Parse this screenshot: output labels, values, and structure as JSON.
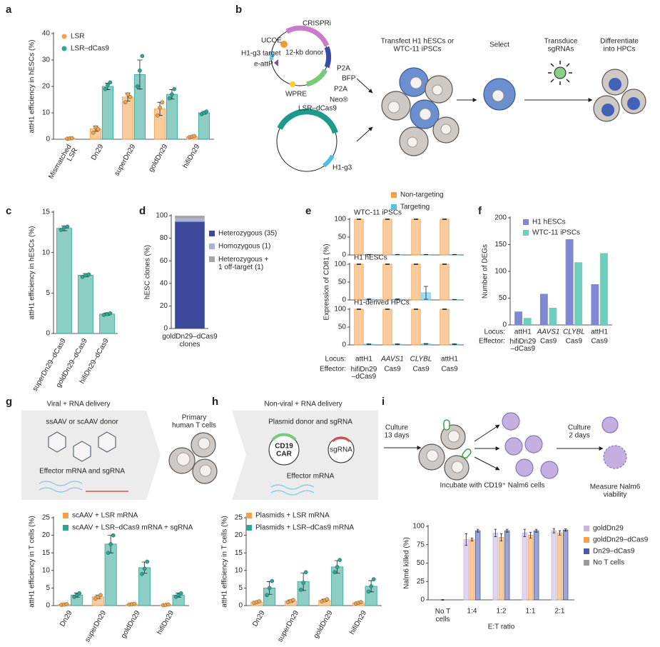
{
  "panel_letters": [
    "a",
    "b",
    "c",
    "d",
    "e",
    "f",
    "g",
    "h",
    "i"
  ],
  "diagram_b": {
    "crispri": "CRISPRi",
    "ucoe": "UCOE",
    "target": "H1-g3 target",
    "attp": "e-attP",
    "donor": "12-kb donor",
    "p2a_1": "P2A",
    "bfp": "BFP",
    "p2a_2": "P2A",
    "neo": "Neo®",
    "wpre": "WPRE",
    "lsr": "LSR–dCas9",
    "g3": "H1-g3",
    "steps": [
      "Transfect H1 hESCs or\nWTC-11 iPSCs",
      "Select",
      "Transduce\nsgRNAs",
      "Differentiate\ninto HPCs"
    ]
  },
  "diagram_g": {
    "title": "Viral + RNA delivery",
    "donor": "ssAAV or scAAV donor",
    "effector": "Effector mRNA and sgRNA",
    "cells": "Primary\nhuman T cells"
  },
  "diagram_h": {
    "title": "Non-viral + RNA delivery",
    "donor": "Plasmid donor and sgRNA",
    "car": "CD19\nCAR",
    "sgrna": "sgRNA",
    "effector": "Effector mRNA"
  },
  "diagram_i": {
    "culture1": "Culture\n13 days",
    "incubate": "Incubate with CD19⁺ Nalm6 cells",
    "culture2": "Culture\n2 days",
    "measure": "Measure Nalm6\nviability"
  },
  "chart_data": [
    {
      "type": "bar",
      "ylabel": "attH1 efficiency in hESCs (%)",
      "categories": [
        "Mismatched\nLSR",
        "Dn29",
        "superDn29",
        "goldDn29",
        "hifiDn29"
      ],
      "series": [
        {
          "name": "LSR",
          "color": "#f5a04a",
          "values": [
            0.3,
            4,
            16,
            11.5,
            1
          ],
          "errors": [
            0.1,
            1,
            1.5,
            2.5,
            0.2
          ],
          "points": [
            [
              0.2,
              0.3,
              0.4
            ],
            [
              2.5,
              4.5,
              3.8
            ],
            [
              14,
              17,
              16
            ],
            [
              9,
              12,
              14
            ],
            [
              0.8,
              1,
              1.2
            ]
          ]
        },
        {
          "name": "LSR–dCas9",
          "color": "#2fa594",
          "values": [
            null,
            20,
            24.5,
            17,
            10
          ],
          "errors": [
            null,
            1.2,
            5.5,
            1.8,
            0.5
          ],
          "points": [
            null,
            [
              19,
              20.5,
              21.5
            ],
            [
              20,
              26,
              31.5
            ],
            [
              15.5,
              17,
              19
            ],
            [
              9.5,
              10,
              10.5
            ]
          ]
        }
      ],
      "ylim": [
        0,
        40
      ],
      "yticks": [
        0,
        10,
        20,
        30,
        40
      ]
    },
    {
      "type": "bar",
      "ylabel": "attH1 efficiency in hESCs (%)",
      "categories": [
        "superDn29–dCas9",
        "goldDn29–dCas9",
        "hifiDn29–dCas9"
      ],
      "color": "#2fa594",
      "values": [
        13,
        7.2,
        2.4
      ],
      "errors": [
        0.3,
        0.2,
        0.15
      ],
      "points": [
        [
          12.8,
          13.1,
          13.2
        ],
        [
          7,
          7.2,
          7.3
        ],
        [
          2.3,
          2.4,
          2.5
        ]
      ],
      "ylim": [
        0,
        15
      ],
      "yticks": [
        0,
        5,
        10,
        15
      ]
    },
    {
      "type": "stacked_bar",
      "ylabel": "hESC clones (%)",
      "categories": [
        "goldDn29–dCas9\nclones"
      ],
      "series": [
        {
          "name": "Heterozygous (35)",
          "color": "#3d4a9c",
          "values": [
            94.6
          ]
        },
        {
          "name": "Homozygous (1)",
          "color": "#a7b1dc",
          "values": [
            2.7
          ]
        },
        {
          "name": "Heterozygous +\n1 off-target (1)",
          "color": "#a6a6a6",
          "values": [
            2.7
          ]
        }
      ],
      "ylim": [
        0,
        100
      ],
      "yticks": [
        0,
        20,
        40,
        60,
        80,
        100
      ]
    },
    {
      "type": "bar",
      "ylabel": "Expression of CD81 (%)",
      "categories": [
        "attH1",
        "AAVS1",
        "CLYBL",
        "attH1"
      ],
      "effectors": [
        "hifiDn29\n–dCas9",
        "Cas9",
        "Cas9",
        "Cas9"
      ],
      "row_labels": [
        "Locus:",
        "Effector:"
      ],
      "subplots": [
        {
          "title": "WTC-11 iPSCs",
          "ylim": [
            0,
            100
          ],
          "yticks": [
            0,
            50,
            100
          ],
          "series": [
            {
              "name": "Non-targeting",
              "color": "#f5a04a",
              "values": [
                100,
                100,
                100,
                100
              ],
              "errors": [
                1,
                1,
                1,
                1
              ]
            },
            {
              "name": "Targeting",
              "color": "#55c3e6",
              "values": [
                1,
                1,
                1,
                1
              ],
              "errors": [
                0.5,
                0.5,
                0.5,
                0.5
              ]
            }
          ]
        },
        {
          "title": "H1 hESCs",
          "ylim": [
            0,
            100
          ],
          "yticks": [
            0,
            50,
            100
          ],
          "series": [
            {
              "name": "Non-targeting",
              "color": "#f5a04a",
              "values": [
                100,
                100,
                100,
                100
              ],
              "errors": [
                1,
                1,
                1,
                1
              ]
            },
            {
              "name": "Targeting",
              "color": "#55c3e6",
              "values": [
                2,
                2,
                20,
                1
              ],
              "errors": [
                1,
                1,
                18,
                0.5
              ]
            }
          ]
        },
        {
          "title": "H1-derived HPCs",
          "ylim": [
            0,
            100
          ],
          "yticks": [
            0,
            50,
            100
          ],
          "series": [
            {
              "name": "Non-targeting",
              "color": "#f5a04a",
              "values": [
                100,
                100,
                100,
                100
              ],
              "errors": [
                1,
                1,
                1,
                1
              ]
            },
            {
              "name": "Targeting",
              "color": "#55c3e6",
              "values": [
                2,
                2,
                3,
                2
              ],
              "errors": [
                1,
                1,
                1,
                1
              ]
            }
          ]
        }
      ]
    },
    {
      "type": "bar",
      "ylabel": "Number of DEGs",
      "categories": [
        "attH1",
        "AAVS1",
        "CLYBL",
        "attH1"
      ],
      "effectors": [
        "hifiDn29\n–dCas9",
        "Cas9",
        "Cas9",
        "Cas9"
      ],
      "row_labels": [
        "Locus:",
        "Effector:"
      ],
      "series": [
        {
          "name": "H1 hESCs",
          "color": "#8088d4",
          "values": [
            25,
            58,
            160,
            76
          ]
        },
        {
          "name": "WTC-11 iPSCs",
          "color": "#6ccfbe",
          "values": [
            13,
            32,
            117,
            134
          ]
        }
      ],
      "ylim": [
        0,
        200
      ],
      "yticks": [
        0,
        50,
        100,
        150,
        200
      ]
    },
    {
      "type": "bar",
      "ylabel": "attH1 efficiency in T cells (%)",
      "categories": [
        "Dn29",
        "superDn29",
        "goldDn29",
        "hifiDn29"
      ],
      "series": [
        {
          "name": "scAAV + LSR mRNA",
          "color": "#f5a04a",
          "values": [
            0.3,
            2.5,
            0.4,
            0.2
          ],
          "errors": [
            0.1,
            0.5,
            0.1,
            0.1
          ],
          "points": [
            [
              0.2,
              0.3,
              0.4
            ],
            [
              2,
              2.5,
              3
            ],
            [
              0.3,
              0.4,
              0.5
            ],
            [
              0.1,
              0.2,
              0.3
            ]
          ]
        },
        {
          "name": "scAAV + LSR–dCas9 mRNA + sgRNA",
          "color": "#2fa594",
          "values": [
            3,
            17.5,
            10.8,
            3
          ],
          "errors": [
            0.6,
            2.5,
            1.6,
            0.6
          ],
          "points": [
            [
              2.5,
              3,
              3.5
            ],
            [
              15,
              17.5,
              20
            ],
            [
              9,
              10.5,
              12.5
            ],
            [
              2.5,
              3,
              3.5
            ]
          ]
        }
      ],
      "ylim": [
        0,
        25
      ],
      "yticks": [
        0,
        5,
        10,
        15,
        20,
        25
      ]
    },
    {
      "type": "bar",
      "ylabel": "attH1 efficiency in T cells (%)",
      "categories": [
        "Dn29",
        "superDn29",
        "goldDn29",
        "hifiDn29"
      ],
      "series": [
        {
          "name": "Plasmids + LSR mRNA",
          "color": "#f5a04a",
          "values": [
            1,
            1.3,
            1.5,
            0.8
          ],
          "errors": [
            0.2,
            0.3,
            0.3,
            0.2
          ],
          "points": [
            [
              0.8,
              1,
              1.2
            ],
            [
              1,
              1.3,
              1.6
            ],
            [
              1.2,
              1.5,
              1.8
            ],
            [
              0.6,
              0.8,
              1
            ]
          ]
        },
        {
          "name": "Plasmids + LSR–dCas9 mRNA",
          "color": "#2fa594",
          "values": [
            5,
            6.8,
            11,
            5.5
          ],
          "errors": [
            1.8,
            2.5,
            1.8,
            1.6
          ],
          "points": [
            [
              3,
              5,
              7
            ],
            [
              4.5,
              6.5,
              9.5
            ],
            [
              9.5,
              11,
              13
            ],
            [
              4,
              5.5,
              7.5
            ]
          ]
        }
      ],
      "ylim": [
        0,
        25
      ],
      "yticks": [
        0,
        5,
        10,
        15,
        20,
        25
      ]
    },
    {
      "type": "bar",
      "ylabel": "Nalm6 killed (%)",
      "xlabel": "E:T ratio",
      "categories": [
        "No T\ncells",
        "1:4",
        "1:2",
        "1:1",
        "2:1"
      ],
      "series": [
        {
          "name": "goldDn29",
          "color": "#c8b4e2",
          "values": [
            null,
            82,
            91,
            91,
            94
          ],
          "errors": [
            null,
            8,
            5,
            5,
            3
          ]
        },
        {
          "name": "goldDn29–dCas9",
          "color": "#f5a04a",
          "values": [
            null,
            82,
            85,
            88,
            91
          ],
          "errors": [
            null,
            2,
            5,
            4,
            3
          ]
        },
        {
          "name": "Dn29–dCas9",
          "color": "#4d5aa8",
          "values": [
            null,
            94,
            94,
            94,
            95
          ],
          "errors": [
            null,
            2,
            2,
            2,
            1.5
          ]
        },
        {
          "name": "No T cells",
          "color": "#9a9a9a",
          "values": [
            0,
            null,
            null,
            null,
            null
          ],
          "errors": [
            0.5,
            null,
            null,
            null,
            null
          ]
        }
      ],
      "ylim": [
        0,
        100
      ],
      "yticks": [
        0,
        25,
        50,
        75,
        100
      ]
    }
  ]
}
